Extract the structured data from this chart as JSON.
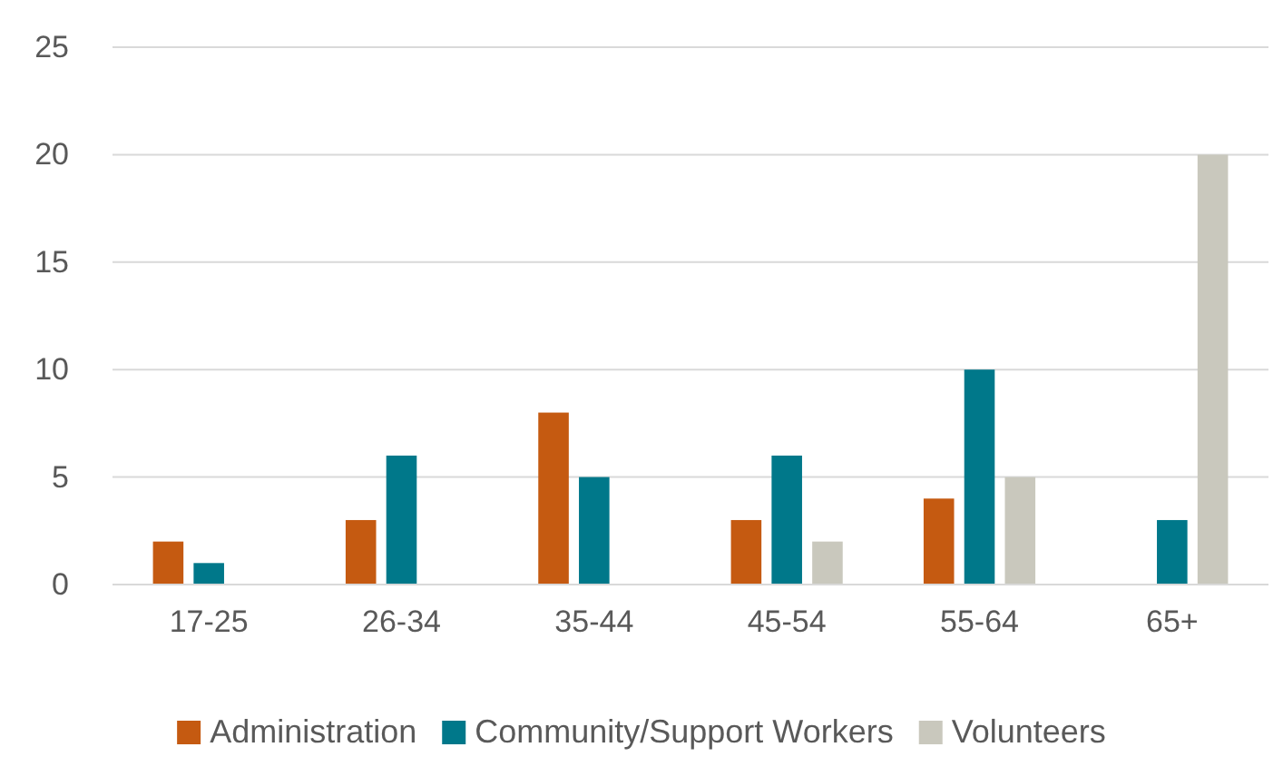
{
  "chart_data": {
    "type": "bar",
    "categories": [
      "17-25",
      "26-34",
      "35-44",
      "45-54",
      "55-64",
      "65+"
    ],
    "series": [
      {
        "name": "Administration",
        "color": "#c55a11",
        "values": [
          2,
          3,
          8,
          3,
          4,
          0
        ]
      },
      {
        "name": "Community/Support Workers",
        "color": "#00788a",
        "values": [
          1,
          6,
          5,
          6,
          10,
          3
        ]
      },
      {
        "name": "Volunteers",
        "color": "#c9c8bd",
        "values": [
          0,
          0,
          0,
          2,
          5,
          20
        ]
      }
    ],
    "ylim": [
      0,
      25
    ],
    "yticks": [
      0,
      5,
      10,
      15,
      20,
      25
    ],
    "grid": "y",
    "legend": "bottom"
  }
}
